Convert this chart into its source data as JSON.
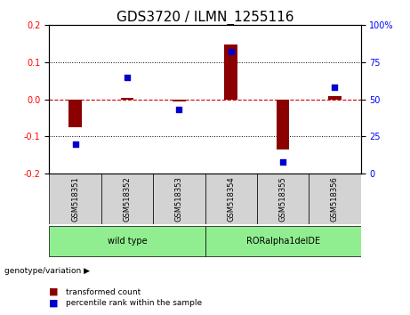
{
  "title": "GDS3720 / ILMN_1255116",
  "samples": [
    "GSM518351",
    "GSM518352",
    "GSM518353",
    "GSM518354",
    "GSM518355",
    "GSM518356"
  ],
  "transformed_count": [
    -0.075,
    0.005,
    -0.005,
    0.148,
    -0.135,
    0.01
  ],
  "percentile_rank": [
    20,
    65,
    43,
    82,
    8,
    58
  ],
  "groups": [
    {
      "label": "wild type",
      "samples": [
        0,
        1,
        2
      ],
      "color": "#90EE90"
    },
    {
      "label": "RORalpha1delDE",
      "samples": [
        3,
        4,
        5
      ],
      "color": "#90EE90"
    }
  ],
  "group_colors": [
    "#90EE90",
    "#90EE90"
  ],
  "ylim_left": [
    -0.2,
    0.2
  ],
  "ylim_right": [
    0,
    100
  ],
  "yticks_left": [
    -0.2,
    -0.1,
    0.0,
    0.1,
    0.2
  ],
  "yticks_right": [
    0,
    25,
    50,
    75,
    100
  ],
  "bar_color": "#8B0000",
  "dot_color": "#0000CD",
  "zero_line_color": "#CC0000",
  "grid_color": "#000000",
  "title_fontsize": 11,
  "tick_fontsize": 7,
  "label_fontsize": 7
}
